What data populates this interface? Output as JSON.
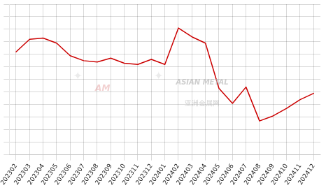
{
  "chart_data": {
    "type": "line",
    "categories": [
      "202302",
      "202303",
      "202304",
      "202305",
      "202306",
      "202307",
      "202308",
      "202309",
      "202310",
      "202311",
      "202312",
      "202401",
      "202402",
      "202403",
      "202404",
      "202405",
      "202406",
      "202407",
      "202408",
      "202409",
      "202410",
      "202411",
      "202412"
    ],
    "values": [
      72,
      82,
      83,
      79,
      69,
      65,
      64,
      67,
      63,
      62,
      66,
      62,
      91,
      84,
      79,
      43,
      31,
      44,
      17,
      21,
      27,
      34,
      39
    ],
    "color": "#cc0000",
    "ylim": [
      -10,
      110
    ],
    "yticks": [
      -10,
      0,
      10,
      20,
      30,
      40,
      50,
      60,
      70,
      80,
      90,
      100,
      110
    ],
    "grid": true,
    "tick_labels": "x",
    "annotations": [
      "ASIAN METAL",
      "亚洲金属网",
      "AM",
      "✦",
      "✦"
    ]
  }
}
